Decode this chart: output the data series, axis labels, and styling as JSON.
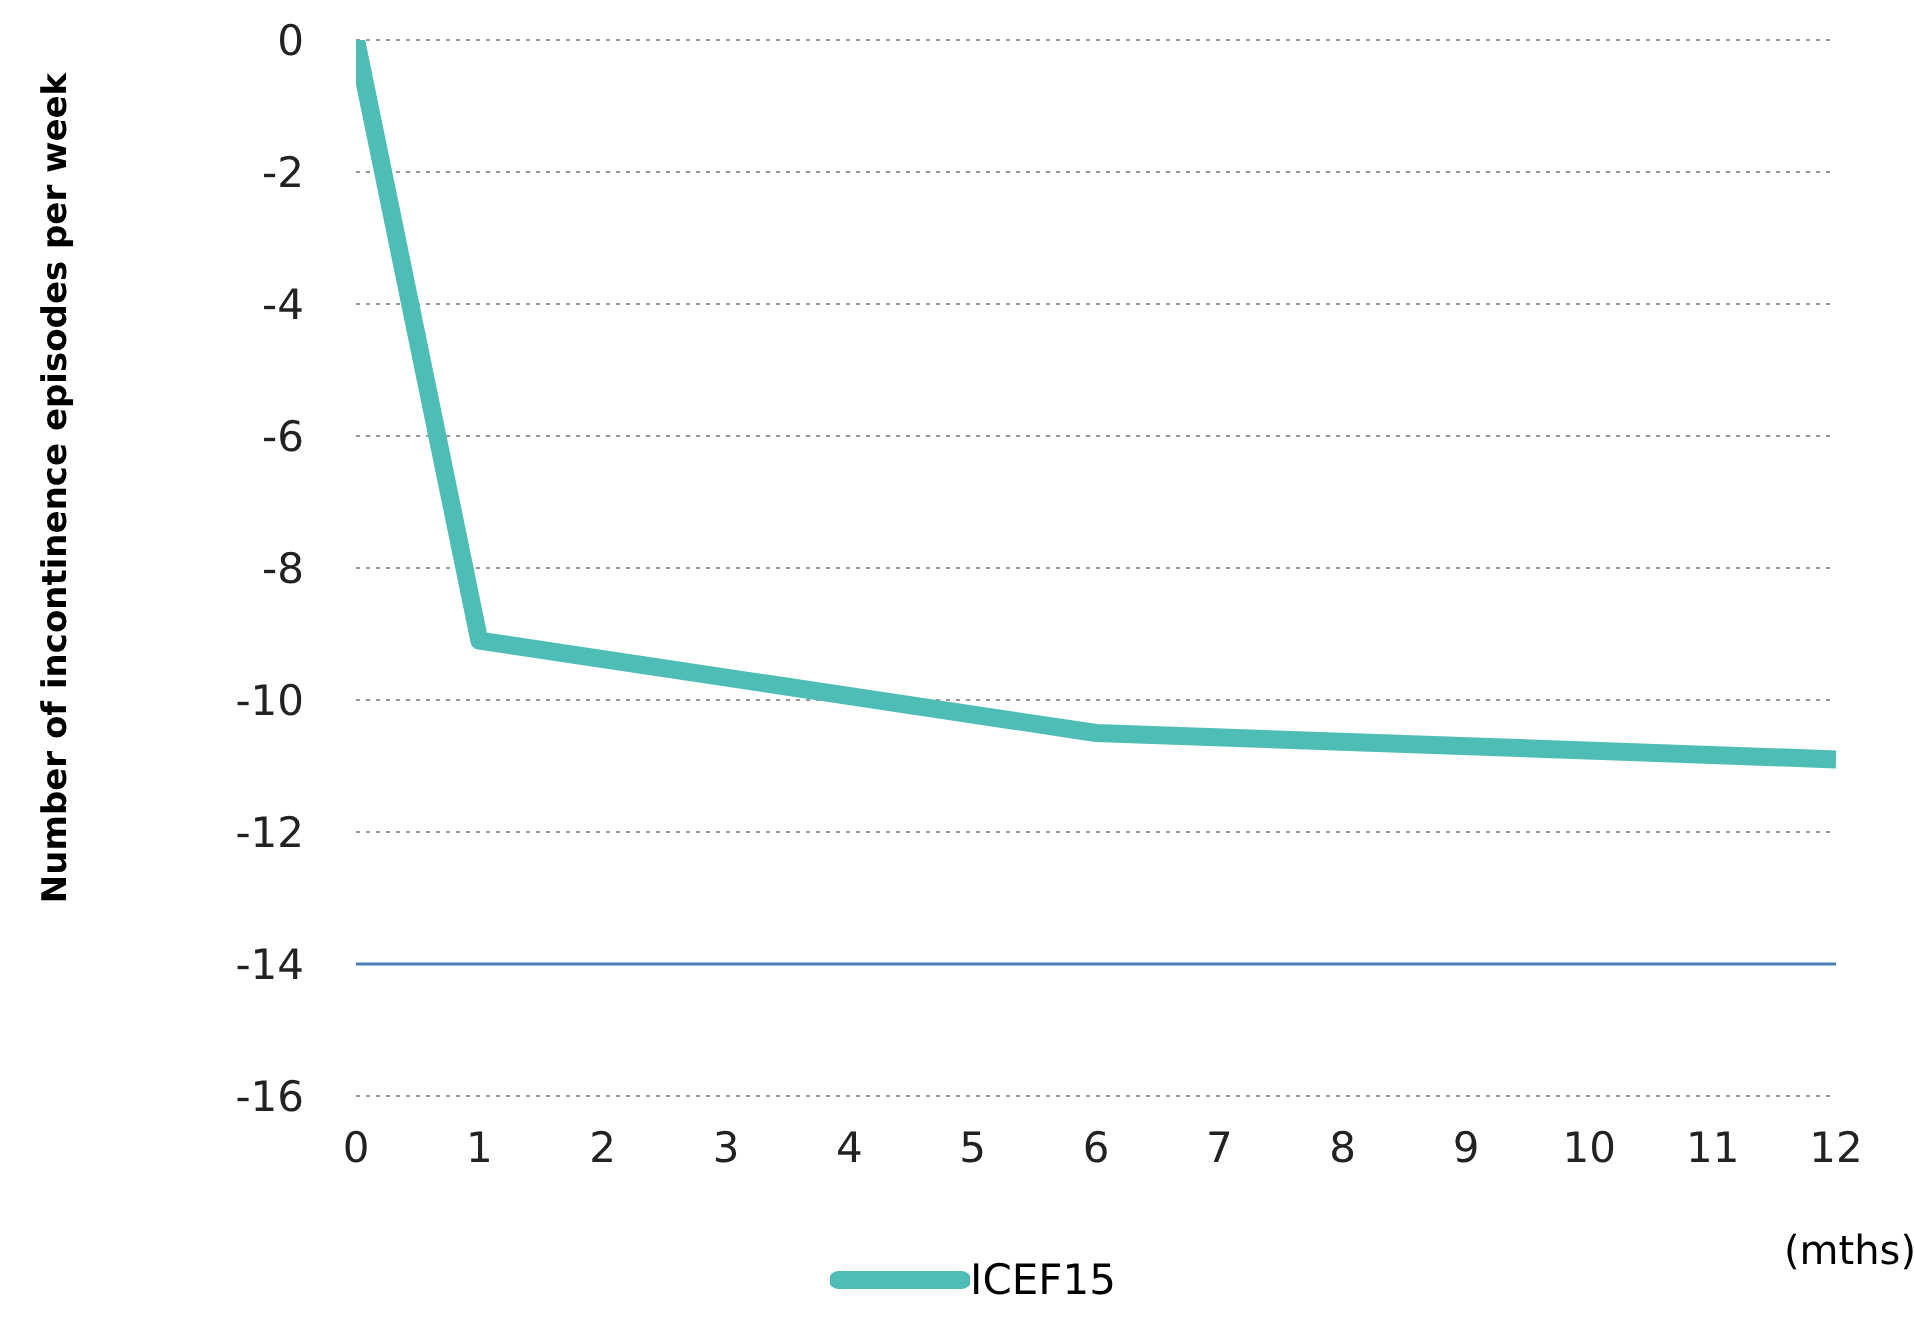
{
  "chart_data": {
    "type": "line",
    "ylabel": "Number of incontinence episodes per week",
    "x": [
      0,
      1,
      6,
      12
    ],
    "series": [
      {
        "name": "ICEF15",
        "color": "#4dbdb5",
        "values": [
          0,
          -9.1,
          -10.5,
          -10.9
        ]
      }
    ],
    "xlim": [
      0,
      12
    ],
    "xticks": [
      0,
      1,
      2,
      3,
      4,
      5,
      6,
      7,
      8,
      9,
      10,
      11,
      12
    ],
    "ylim": [
      -16,
      0
    ],
    "yticks": [
      -16,
      -14,
      -12,
      -10,
      -8,
      -6,
      -4,
      -2,
      0
    ],
    "ref_lines": [
      {
        "axis": "y",
        "value": -14,
        "color": "#4a7ebb"
      }
    ],
    "annotations": [
      "(mths)"
    ],
    "grid": "y",
    "legend": "bottom",
    "marker": "none",
    "line_style": "solid"
  }
}
